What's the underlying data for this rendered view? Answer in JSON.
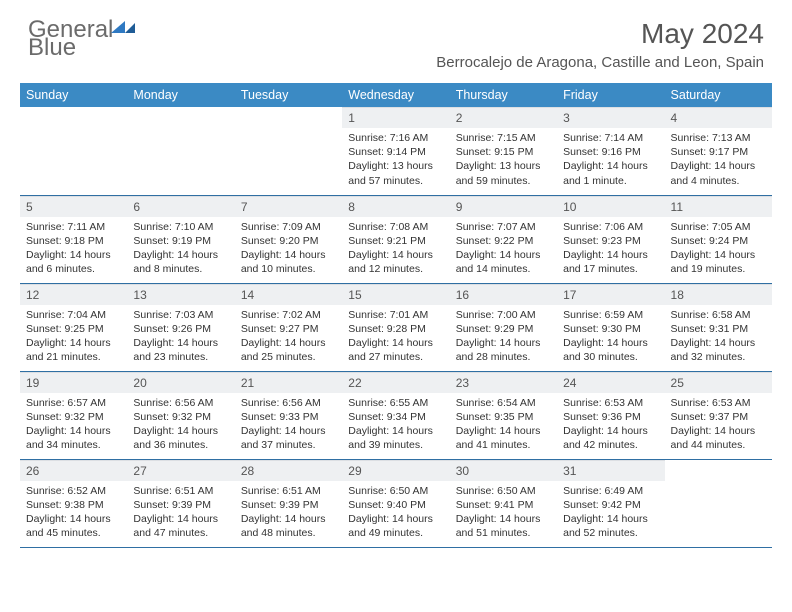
{
  "brand": {
    "name_gray": "General",
    "name_blue": "Blue"
  },
  "title": "May 2024",
  "location": "Berrocalejo de Aragona, Castille and Leon, Spain",
  "colors": {
    "header_bg": "#3b8ac4",
    "header_text": "#ffffff",
    "daynum_bg": "#eef0f2",
    "row_border": "#2f6fa3",
    "logo_gray": "#6b6b6b",
    "logo_blue": "#2f79c2",
    "text": "#333333"
  },
  "weekdays": [
    "Sunday",
    "Monday",
    "Tuesday",
    "Wednesday",
    "Thursday",
    "Friday",
    "Saturday"
  ],
  "weeks": [
    [
      {
        "day": "",
        "sunrise": "",
        "sunset": "",
        "daylight": ""
      },
      {
        "day": "",
        "sunrise": "",
        "sunset": "",
        "daylight": ""
      },
      {
        "day": "",
        "sunrise": "",
        "sunset": "",
        "daylight": ""
      },
      {
        "day": "1",
        "sunrise": "Sunrise: 7:16 AM",
        "sunset": "Sunset: 9:14 PM",
        "daylight": "Daylight: 13 hours and 57 minutes."
      },
      {
        "day": "2",
        "sunrise": "Sunrise: 7:15 AM",
        "sunset": "Sunset: 9:15 PM",
        "daylight": "Daylight: 13 hours and 59 minutes."
      },
      {
        "day": "3",
        "sunrise": "Sunrise: 7:14 AM",
        "sunset": "Sunset: 9:16 PM",
        "daylight": "Daylight: 14 hours and 1 minute."
      },
      {
        "day": "4",
        "sunrise": "Sunrise: 7:13 AM",
        "sunset": "Sunset: 9:17 PM",
        "daylight": "Daylight: 14 hours and 4 minutes."
      }
    ],
    [
      {
        "day": "5",
        "sunrise": "Sunrise: 7:11 AM",
        "sunset": "Sunset: 9:18 PM",
        "daylight": "Daylight: 14 hours and 6 minutes."
      },
      {
        "day": "6",
        "sunrise": "Sunrise: 7:10 AM",
        "sunset": "Sunset: 9:19 PM",
        "daylight": "Daylight: 14 hours and 8 minutes."
      },
      {
        "day": "7",
        "sunrise": "Sunrise: 7:09 AM",
        "sunset": "Sunset: 9:20 PM",
        "daylight": "Daylight: 14 hours and 10 minutes."
      },
      {
        "day": "8",
        "sunrise": "Sunrise: 7:08 AM",
        "sunset": "Sunset: 9:21 PM",
        "daylight": "Daylight: 14 hours and 12 minutes."
      },
      {
        "day": "9",
        "sunrise": "Sunrise: 7:07 AM",
        "sunset": "Sunset: 9:22 PM",
        "daylight": "Daylight: 14 hours and 14 minutes."
      },
      {
        "day": "10",
        "sunrise": "Sunrise: 7:06 AM",
        "sunset": "Sunset: 9:23 PM",
        "daylight": "Daylight: 14 hours and 17 minutes."
      },
      {
        "day": "11",
        "sunrise": "Sunrise: 7:05 AM",
        "sunset": "Sunset: 9:24 PM",
        "daylight": "Daylight: 14 hours and 19 minutes."
      }
    ],
    [
      {
        "day": "12",
        "sunrise": "Sunrise: 7:04 AM",
        "sunset": "Sunset: 9:25 PM",
        "daylight": "Daylight: 14 hours and 21 minutes."
      },
      {
        "day": "13",
        "sunrise": "Sunrise: 7:03 AM",
        "sunset": "Sunset: 9:26 PM",
        "daylight": "Daylight: 14 hours and 23 minutes."
      },
      {
        "day": "14",
        "sunrise": "Sunrise: 7:02 AM",
        "sunset": "Sunset: 9:27 PM",
        "daylight": "Daylight: 14 hours and 25 minutes."
      },
      {
        "day": "15",
        "sunrise": "Sunrise: 7:01 AM",
        "sunset": "Sunset: 9:28 PM",
        "daylight": "Daylight: 14 hours and 27 minutes."
      },
      {
        "day": "16",
        "sunrise": "Sunrise: 7:00 AM",
        "sunset": "Sunset: 9:29 PM",
        "daylight": "Daylight: 14 hours and 28 minutes."
      },
      {
        "day": "17",
        "sunrise": "Sunrise: 6:59 AM",
        "sunset": "Sunset: 9:30 PM",
        "daylight": "Daylight: 14 hours and 30 minutes."
      },
      {
        "day": "18",
        "sunrise": "Sunrise: 6:58 AM",
        "sunset": "Sunset: 9:31 PM",
        "daylight": "Daylight: 14 hours and 32 minutes."
      }
    ],
    [
      {
        "day": "19",
        "sunrise": "Sunrise: 6:57 AM",
        "sunset": "Sunset: 9:32 PM",
        "daylight": "Daylight: 14 hours and 34 minutes."
      },
      {
        "day": "20",
        "sunrise": "Sunrise: 6:56 AM",
        "sunset": "Sunset: 9:32 PM",
        "daylight": "Daylight: 14 hours and 36 minutes."
      },
      {
        "day": "21",
        "sunrise": "Sunrise: 6:56 AM",
        "sunset": "Sunset: 9:33 PM",
        "daylight": "Daylight: 14 hours and 37 minutes."
      },
      {
        "day": "22",
        "sunrise": "Sunrise: 6:55 AM",
        "sunset": "Sunset: 9:34 PM",
        "daylight": "Daylight: 14 hours and 39 minutes."
      },
      {
        "day": "23",
        "sunrise": "Sunrise: 6:54 AM",
        "sunset": "Sunset: 9:35 PM",
        "daylight": "Daylight: 14 hours and 41 minutes."
      },
      {
        "day": "24",
        "sunrise": "Sunrise: 6:53 AM",
        "sunset": "Sunset: 9:36 PM",
        "daylight": "Daylight: 14 hours and 42 minutes."
      },
      {
        "day": "25",
        "sunrise": "Sunrise: 6:53 AM",
        "sunset": "Sunset: 9:37 PM",
        "daylight": "Daylight: 14 hours and 44 minutes."
      }
    ],
    [
      {
        "day": "26",
        "sunrise": "Sunrise: 6:52 AM",
        "sunset": "Sunset: 9:38 PM",
        "daylight": "Daylight: 14 hours and 45 minutes."
      },
      {
        "day": "27",
        "sunrise": "Sunrise: 6:51 AM",
        "sunset": "Sunset: 9:39 PM",
        "daylight": "Daylight: 14 hours and 47 minutes."
      },
      {
        "day": "28",
        "sunrise": "Sunrise: 6:51 AM",
        "sunset": "Sunset: 9:39 PM",
        "daylight": "Daylight: 14 hours and 48 minutes."
      },
      {
        "day": "29",
        "sunrise": "Sunrise: 6:50 AM",
        "sunset": "Sunset: 9:40 PM",
        "daylight": "Daylight: 14 hours and 49 minutes."
      },
      {
        "day": "30",
        "sunrise": "Sunrise: 6:50 AM",
        "sunset": "Sunset: 9:41 PM",
        "daylight": "Daylight: 14 hours and 51 minutes."
      },
      {
        "day": "31",
        "sunrise": "Sunrise: 6:49 AM",
        "sunset": "Sunset: 9:42 PM",
        "daylight": "Daylight: 14 hours and 52 minutes."
      },
      {
        "day": "",
        "sunrise": "",
        "sunset": "",
        "daylight": ""
      }
    ]
  ]
}
